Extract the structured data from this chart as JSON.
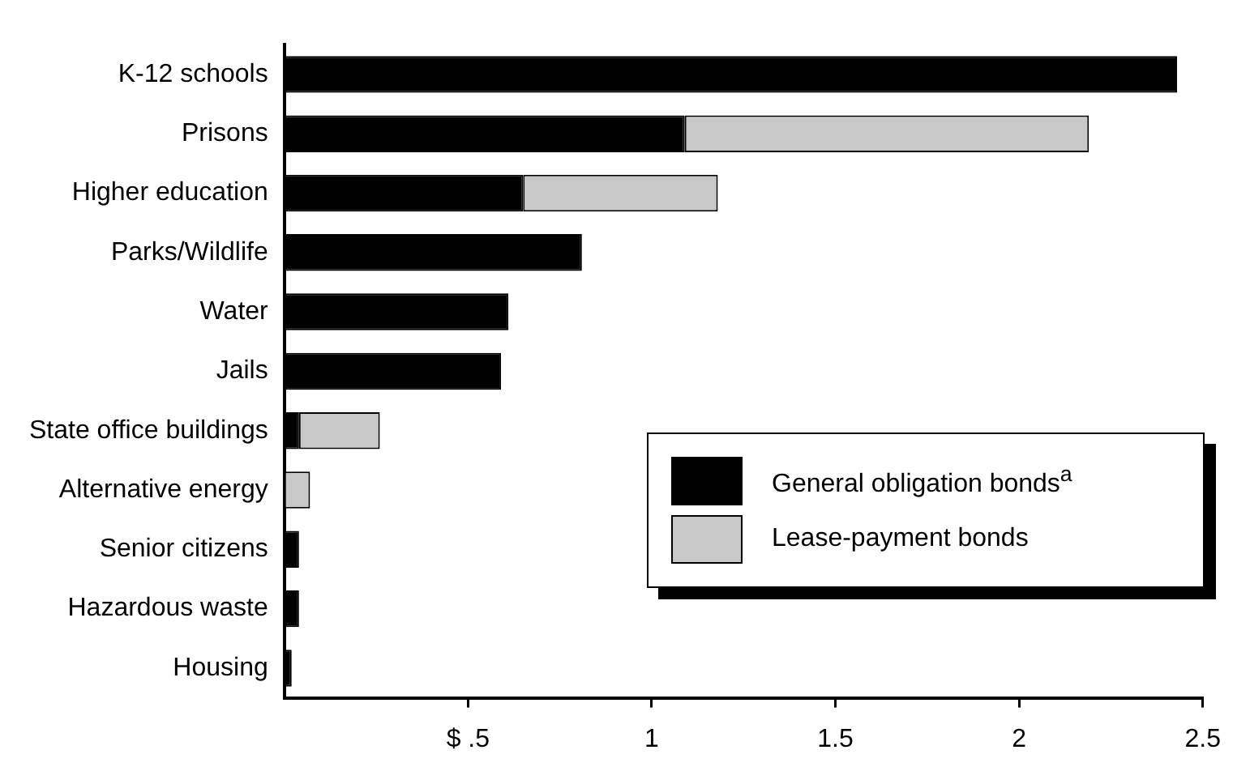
{
  "chart_data": {
    "type": "bar",
    "orientation": "horizontal",
    "stacked": true,
    "categories": [
      "K-12 schools",
      "Prisons",
      "Higher education",
      "Parks/Wildlife",
      "Water",
      "Jails",
      "State office buildings",
      "Alternative energy",
      "Senior citizens",
      "Hazardous waste",
      "Housing"
    ],
    "series": [
      {
        "name": "General obligation bonds$^{a}$",
        "color": "#000000",
        "values": [
          2.43,
          1.09,
          0.65,
          0.81,
          0.61,
          0.59,
          0.04,
          0,
          0.04,
          0.04,
          0.02
        ]
      },
      {
        "name": "Lease-payment bonds",
        "color": "#c8c8c8",
        "values": [
          0,
          1.1,
          0.53,
          0,
          0,
          0,
          0.22,
          0.07,
          0,
          0,
          0
        ]
      }
    ],
    "xlim": [
      0,
      2.5
    ],
    "xticks": [
      {
        "value": 0.5,
        "label": "$ .5"
      },
      1,
      1.5,
      2,
      2.5
    ],
    "grid": false,
    "legend": "bottom right"
  }
}
